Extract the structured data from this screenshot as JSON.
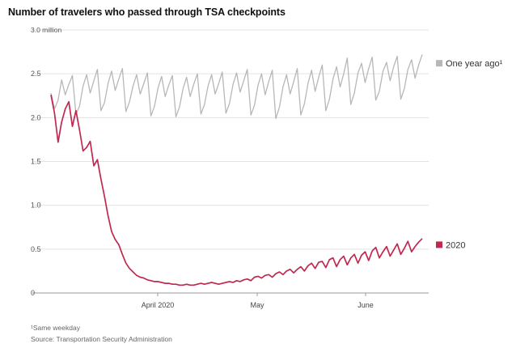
{
  "chart_data": {
    "type": "line",
    "title": "Number of travelers who passed through TSA checkpoints",
    "y_unit_label": "3.0 million",
    "ylim": [
      0,
      3.0
    ],
    "y_ticks": [
      "2.5",
      "2.0",
      "1.5",
      "1.0",
      "0.5",
      "0"
    ],
    "x_ticks": [
      "April 2020",
      "May",
      "June"
    ],
    "grid": "horizontal",
    "legend": "right, at line ends",
    "series": [
      {
        "name": "One year ago¹",
        "color": "#b7b7b7",
        "values": [
          2.28,
          2.1,
          2.2,
          2.43,
          2.26,
          2.38,
          2.48,
          2.04,
          2.13,
          2.36,
          2.49,
          2.28,
          2.42,
          2.55,
          2.08,
          2.17,
          2.39,
          2.53,
          2.31,
          2.44,
          2.56,
          2.07,
          2.18,
          2.36,
          2.49,
          2.27,
          2.39,
          2.51,
          2.02,
          2.13,
          2.34,
          2.47,
          2.24,
          2.37,
          2.48,
          2.01,
          2.12,
          2.33,
          2.46,
          2.24,
          2.38,
          2.5,
          2.04,
          2.15,
          2.36,
          2.49,
          2.27,
          2.39,
          2.52,
          2.05,
          2.16,
          2.38,
          2.51,
          2.29,
          2.42,
          2.55,
          2.03,
          2.14,
          2.37,
          2.5,
          2.26,
          2.41,
          2.54,
          1.99,
          2.12,
          2.35,
          2.49,
          2.27,
          2.41,
          2.56,
          2.03,
          2.16,
          2.39,
          2.54,
          2.3,
          2.46,
          2.6,
          2.08,
          2.21,
          2.44,
          2.58,
          2.35,
          2.5,
          2.68,
          2.15,
          2.28,
          2.51,
          2.62,
          2.4,
          2.56,
          2.69,
          2.2,
          2.3,
          2.53,
          2.63,
          2.42,
          2.58,
          2.7,
          2.21,
          2.33,
          2.55,
          2.66,
          2.45,
          2.6,
          2.72
        ]
      },
      {
        "name": "2020",
        "color": "#c0284f",
        "values": [
          2.26,
          2.05,
          1.72,
          1.95,
          2.1,
          2.18,
          1.9,
          2.08,
          1.86,
          1.62,
          1.66,
          1.73,
          1.45,
          1.52,
          1.3,
          1.1,
          0.88,
          0.7,
          0.61,
          0.55,
          0.44,
          0.34,
          0.28,
          0.24,
          0.2,
          0.18,
          0.17,
          0.15,
          0.14,
          0.13,
          0.13,
          0.12,
          0.11,
          0.11,
          0.1,
          0.1,
          0.09,
          0.09,
          0.1,
          0.09,
          0.09,
          0.1,
          0.11,
          0.1,
          0.11,
          0.12,
          0.11,
          0.1,
          0.11,
          0.12,
          0.13,
          0.12,
          0.14,
          0.13,
          0.15,
          0.16,
          0.14,
          0.18,
          0.19,
          0.17,
          0.2,
          0.21,
          0.18,
          0.22,
          0.24,
          0.21,
          0.25,
          0.27,
          0.23,
          0.27,
          0.3,
          0.25,
          0.31,
          0.34,
          0.28,
          0.35,
          0.36,
          0.29,
          0.38,
          0.4,
          0.3,
          0.38,
          0.42,
          0.32,
          0.4,
          0.44,
          0.34,
          0.43,
          0.47,
          0.37,
          0.48,
          0.52,
          0.4,
          0.47,
          0.53,
          0.42,
          0.49,
          0.56,
          0.44,
          0.51,
          0.59,
          0.47,
          0.53,
          0.58,
          0.62
        ]
      }
    ]
  },
  "footer": {
    "note": "¹Same weekday",
    "source": "Source: Transportation Security Administration"
  }
}
